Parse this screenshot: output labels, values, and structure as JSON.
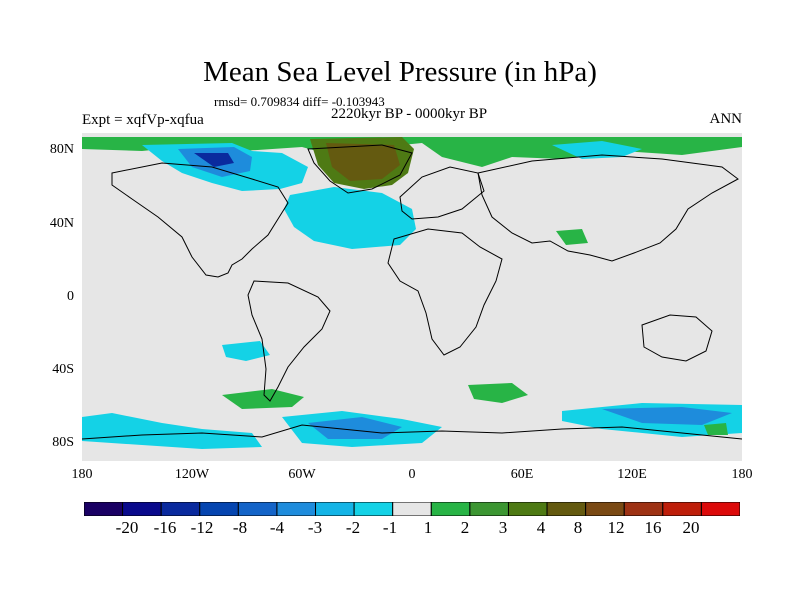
{
  "title": "Mean Sea Level Pressure (in hPa)",
  "stats": "rmsd= 0.709834 diff= -0.103943",
  "period": "2220kyr BP - 0000kyr BP",
  "experiment": "Expt = xqfVp-xqfua",
  "season": "ANN",
  "lat_labels": [
    "80N",
    "40N",
    "0",
    "40S",
    "80S"
  ],
  "lon_labels": [
    "180",
    "120W",
    "60W",
    "0",
    "60E",
    "120E",
    "180"
  ],
  "colorbar": {
    "colors": [
      "#1a0064",
      "#0a0a8c",
      "#0a2a9e",
      "#0545b0",
      "#1464c8",
      "#1e8cdc",
      "#14b4e6",
      "#14d2e6",
      "#e6e6e6",
      "#28b446",
      "#3c9632",
      "#4e7a14",
      "#645a10",
      "#7a4a14",
      "#9e3214",
      "#be1e0a",
      "#dc0a0a"
    ],
    "labels": [
      "-20",
      "-16",
      "-12",
      "-8",
      "-4",
      "-3",
      "-2",
      "-1",
      "1",
      "2",
      "3",
      "4",
      "8",
      "12",
      "16",
      "20"
    ]
  },
  "colors": {
    "land_bg": "#e6e6e6",
    "coast": "#000000",
    "cyan": "#14d2e6",
    "blue": "#1e8cdc",
    "darkblue": "#0a2a9e",
    "green": "#28b446",
    "olive": "#4e7a14",
    "brown": "#645a10"
  }
}
